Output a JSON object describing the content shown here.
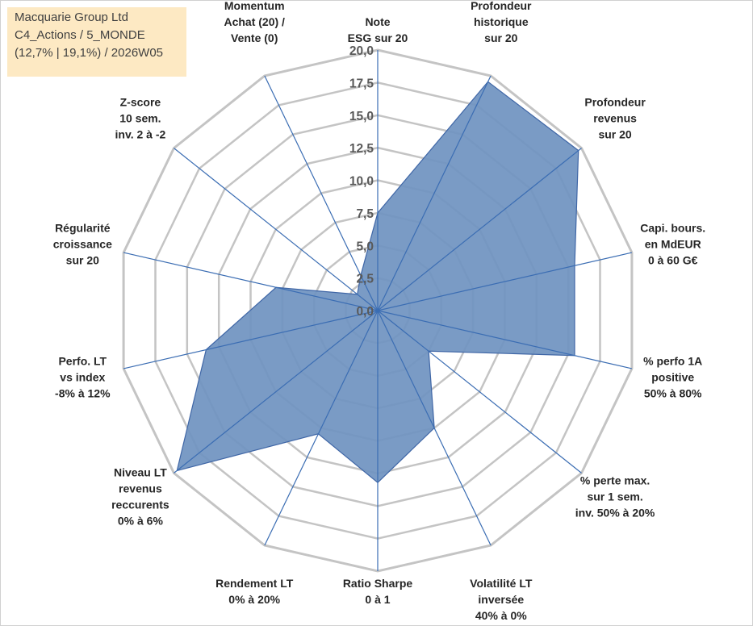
{
  "info_box": {
    "line1": "Macquarie Group Ltd",
    "line2": "C4_Actions / 5_MONDE",
    "line3": "(12,7% | 19,1%) / 2026W05"
  },
  "colors": {
    "fill": "#6f93c0",
    "stroke": "#3f66a6",
    "axis": "#3b6db3",
    "grid": "#c4c4c4",
    "info_bg": "#fde9c3"
  },
  "chart_data": {
    "type": "radar",
    "title": "",
    "rmin": 0,
    "rmax": 20,
    "ticks": [
      "0,0",
      "2,5",
      "5,0",
      "7,5",
      "10,0",
      "12,5",
      "15,0",
      "17,5",
      "20,0"
    ],
    "tick_values": [
      0,
      2.5,
      5,
      7.5,
      10,
      12.5,
      15,
      17.5,
      20
    ],
    "axes": [
      {
        "label": [
          "Note",
          "ESG sur 20"
        ],
        "value": 7.5
      },
      {
        "label": [
          "Profondeur",
          "historique",
          "sur 20"
        ],
        "value": 19.5
      },
      {
        "label": [
          "Profondeur",
          "revenus",
          "sur 20"
        ],
        "value": 19.7
      },
      {
        "label": [
          "Capi. bours.",
          "en MdEUR",
          "0 à 60 G€"
        ],
        "value": 15.5
      },
      {
        "label": [
          "% perfo 1A",
          "positive",
          "50% à 80%"
        ],
        "value": 15.5
      },
      {
        "label": [
          "% perte max.",
          "sur 1 sem.",
          "inv. 50% à 20%"
        ],
        "value": 5.0
      },
      {
        "label": [
          "Volatilité LT",
          "inversée",
          "40% à 0%"
        ],
        "value": 10.0
      },
      {
        "label": [
          "Ratio Sharpe",
          "0 à 1"
        ],
        "value": 13.2
      },
      {
        "label": [
          "Rendement LT",
          "0% à 20%"
        ],
        "value": 10.5
      },
      {
        "label": [
          "Niveau LT",
          "revenus",
          "reccurents",
          "0% à 6%"
        ],
        "value": 19.7
      },
      {
        "label": [
          "Perfo. LT",
          "vs index",
          "-8% à 12%"
        ],
        "value": 13.5
      },
      {
        "label": [
          "Régularité",
          "croissance",
          "sur 20"
        ],
        "value": 8.0
      },
      {
        "label": [
          "Z-score",
          "10 sem.",
          "inv. 2 à -2"
        ],
        "value": 2.0
      },
      {
        "label": [
          "Momentum",
          "Achat (20) /",
          "Vente (0)"
        ],
        "value": 3.0
      }
    ]
  }
}
